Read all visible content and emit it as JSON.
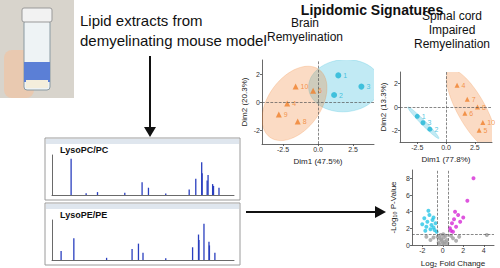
{
  "labels": {
    "sample": [
      "Lipid extracts from",
      "demyelinating mouse model"
    ],
    "heading": "Lipidomic Signatures"
  },
  "chart_data": [
    {
      "type": "pca",
      "title": "Brain\nRemyelination",
      "xlabel": "Dim1 (47.5%)",
      "ylabel": "Dim2 (20.3%)",
      "xlim": [
        -4,
        4
      ],
      "ylim": [
        -3,
        3
      ],
      "xticks": [
        -2.5,
        {
          "value": 0,
          "label": "0.0"
        },
        2.5
      ],
      "yticks": [
        -2,
        0,
        2
      ],
      "grid": false,
      "data_labels": true,
      "reference_lines": {
        "x": [
          0
        ],
        "y": [
          0
        ]
      },
      "series": [
        {
          "color": "#1fb5d6",
          "marker": "circle",
          "values": [
            [
              1.45,
              1.9
            ],
            [
              3.1,
              1.1
            ],
            [
              1.15,
              0.5
            ]
          ],
          "point_labels": [
            "1",
            "3",
            "2"
          ]
        },
        {
          "color": "#f07f2a",
          "marker": "triangle",
          "values": [
            [
              -1.6,
              1.1
            ],
            [
              -0.35,
              0.8
            ],
            [
              -2.2,
              -0.1
            ],
            [
              -2.8,
              -0.9
            ],
            [
              -1.45,
              -1.4
            ]
          ],
          "point_labels": [
            "10",
            "6",
            "4",
            "9",
            "8"
          ]
        }
      ]
    },
    {
      "type": "pca",
      "title": "Spinal cord\nImpaired\nRemyelination",
      "xlabel": "Dim1 (77.8%)",
      "ylabel": "Dim2 (13.3%)",
      "xlim": [
        -4,
        4
      ],
      "ylim": [
        -3,
        3
      ],
      "xticks": [
        -2.5,
        {
          "value": 0,
          "label": "0.0"
        },
        2.5
      ],
      "yticks": [
        -2,
        0,
        2
      ],
      "grid": false,
      "data_labels": true,
      "reference_lines": {
        "x": [
          0
        ],
        "y": [
          0
        ]
      },
      "series": [
        {
          "color": "#1fb5d6",
          "marker": "circle",
          "values": [
            [
              -2.5,
              -0.8
            ],
            [
              -2.0,
              -1.35
            ],
            [
              -1.4,
              -1.9
            ]
          ],
          "point_labels": [
            "1",
            "3",
            "2"
          ]
        },
        {
          "color": "#f07f2a",
          "marker": "triangle",
          "values": [
            [
              0.96,
              1.87
            ],
            [
              1.85,
              0.67
            ],
            [
              2.74,
              0.0
            ],
            [
              1.64,
              -0.53
            ],
            [
              3.2,
              -1.33
            ],
            [
              2.88,
              -2.0
            ]
          ],
          "point_labels": [
            "4",
            "7",
            "8",
            "6",
            "10",
            "5"
          ]
        }
      ]
    },
    {
      "type": "bar",
      "title": "LysoPC/PC",
      "x": [
        184,
        250,
        300,
        420,
        496,
        524,
        600,
        703,
        732,
        758,
        760,
        782,
        786,
        806,
        810,
        834
      ],
      "values": [
        100,
        5,
        8,
        6,
        35,
        20,
        4,
        15,
        45,
        90,
        60,
        40,
        55,
        30,
        25,
        20
      ],
      "xlim": [
        100,
        900
      ],
      "ylim": [
        0,
        110
      ],
      "color": "#2a3fbf",
      "tick_labels": false
    },
    {
      "type": "bar",
      "title": "LysoPE/PE",
      "x": [
        140,
        196,
        340,
        452,
        480,
        500,
        600,
        718,
        744,
        746,
        768,
        790,
        792,
        816
      ],
      "values": [
        25,
        60,
        6,
        30,
        45,
        20,
        5,
        35,
        70,
        55,
        100,
        50,
        40,
        20
      ],
      "xlim": [
        100,
        900
      ],
      "ylim": [
        0,
        110
      ],
      "color": "#2a3fbf",
      "tick_labels": false
    },
    {
      "type": "scatter",
      "xlabel": "Log₂ Fold Change",
      "ylabel": "-Log₁₀ P-Value",
      "xlim": [
        -3,
        5
      ],
      "ylim": [
        0,
        9
      ],
      "xticks": [
        -2,
        0,
        2,
        4
      ],
      "yticks": [
        0,
        2,
        4,
        6,
        8
      ],
      "grid": false,
      "reference_lines": {
        "x": [
          -0.5,
          0.5
        ],
        "y": [
          1.3
        ]
      },
      "series": [
        {
          "color": "#29c5e6",
          "marker": "circle",
          "values": [
            [
              -1.8,
              3.2
            ],
            [
              -1.5,
              2.8
            ],
            [
              -1.3,
              3.6
            ],
            [
              -1.1,
              2.4
            ],
            [
              -1.0,
              3.0
            ],
            [
              -0.9,
              2.1
            ],
            [
              -0.8,
              1.8
            ],
            [
              -1.6,
              2.2
            ],
            [
              -1.2,
              1.9
            ],
            [
              -0.7,
              2.6
            ],
            [
              -2.0,
              2.5
            ],
            [
              -1.4,
              4.1
            ],
            [
              -0.9,
              3.3
            ],
            [
              -0.6,
              1.6
            ],
            [
              -1.7,
              1.7
            ]
          ]
        },
        {
          "color": "#d62bd6",
          "marker": "circle",
          "values": [
            [
              0.7,
              2.0
            ],
            [
              0.9,
              2.6
            ],
            [
              1.1,
              3.1
            ],
            [
              1.3,
              2.2
            ],
            [
              1.5,
              3.6
            ],
            [
              0.8,
              1.7
            ],
            [
              1.7,
              2.8
            ],
            [
              2.0,
              3.3
            ],
            [
              1.2,
              4.0
            ],
            [
              2.4,
              5.3
            ],
            [
              3.0,
              8.0
            ],
            [
              1.0,
              1.6
            ]
          ]
        },
        {
          "color": "#9e9e9e",
          "marker": "circle",
          "values": [
            [
              -0.4,
              0.3
            ],
            [
              -0.3,
              0.8
            ],
            [
              -0.2,
              1.2
            ],
            [
              -0.1,
              0.5
            ],
            [
              0,
              0.2
            ],
            [
              0.1,
              0.9
            ],
            [
              0.2,
              0.4
            ],
            [
              0.3,
              1.1
            ],
            [
              0.4,
              0.6
            ],
            [
              -0.5,
              1.0
            ],
            [
              -0.35,
              0.1
            ],
            [
              0.15,
              0.15
            ],
            [
              0.45,
              0.2
            ],
            [
              -0.15,
              0.7
            ],
            [
              0.05,
              1.3
            ],
            [
              -1.2,
              0.6
            ],
            [
              -0.9,
              0.9
            ],
            [
              1.0,
              0.8
            ],
            [
              1.3,
              0.5
            ],
            [
              0.8,
              1.1
            ],
            [
              -1.6,
              1.0
            ],
            [
              1.6,
              1.0
            ],
            [
              4.3,
              1.2
            ]
          ]
        }
      ]
    }
  ]
}
